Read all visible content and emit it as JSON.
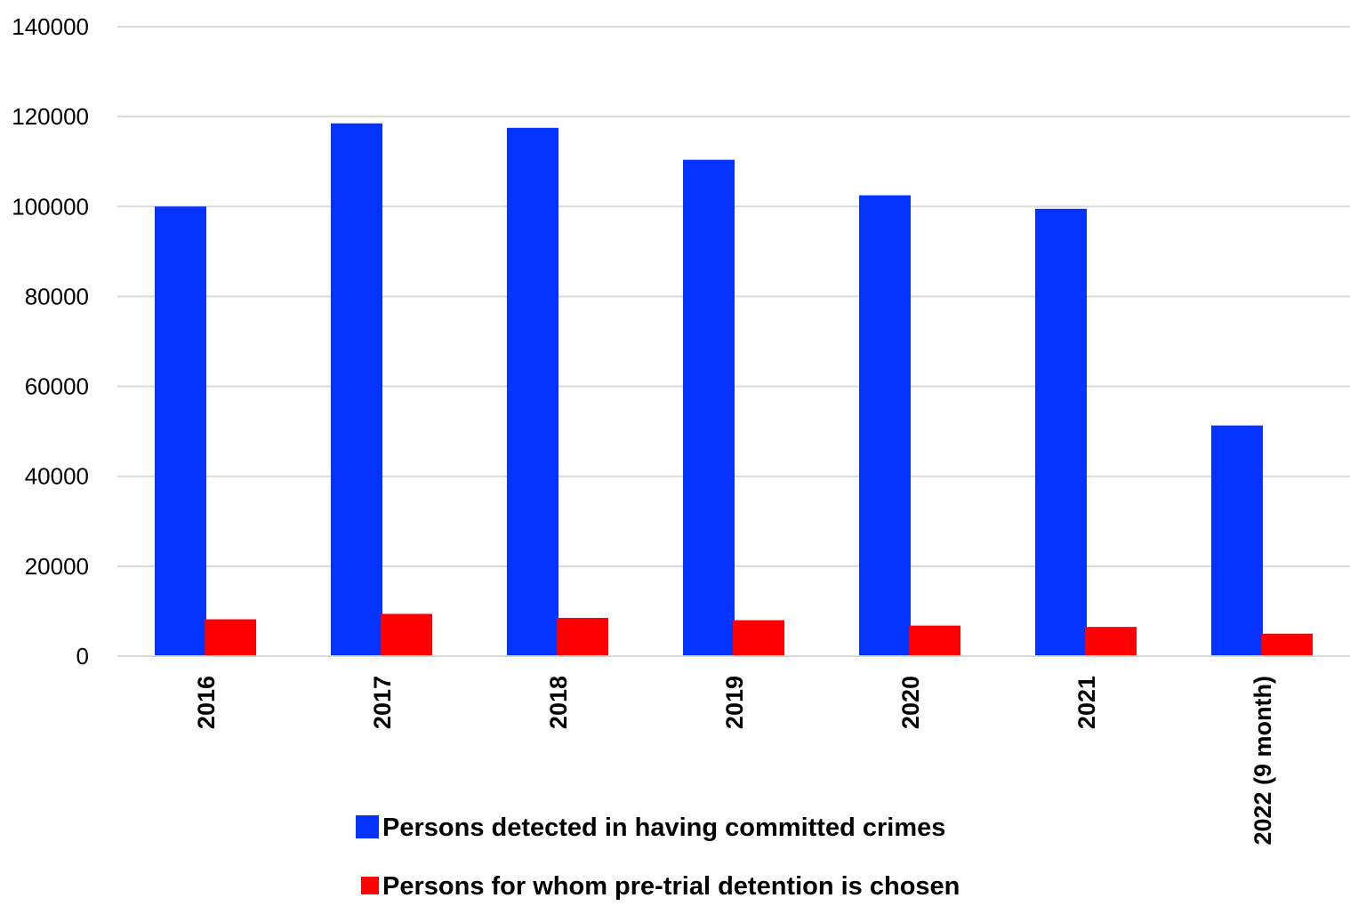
{
  "chart_data": {
    "type": "bar",
    "categories": [
      "2016",
      "2017",
      "2018",
      "2019",
      "2020",
      "2021",
      "2022 (9 month)"
    ],
    "series": [
      {
        "name": "Persons detected in having committed crimes",
        "color": "#0433ff",
        "values": [
          100000,
          118500,
          117500,
          110400,
          102500,
          99500,
          51300
        ]
      },
      {
        "name": "Persons for whom pre-trial detention is chosen",
        "color": "#ff0000",
        "values": [
          8200,
          9400,
          8500,
          8000,
          6800,
          6500,
          5000
        ]
      }
    ],
    "yticks": [
      "0",
      "20000",
      "40000",
      "60000",
      "80000",
      "100000",
      "120000",
      "140000"
    ],
    "ylim": [
      0,
      140000
    ],
    "grid": true,
    "legend_position": "bottom",
    "title": "",
    "xlabel": "",
    "ylabel": ""
  }
}
